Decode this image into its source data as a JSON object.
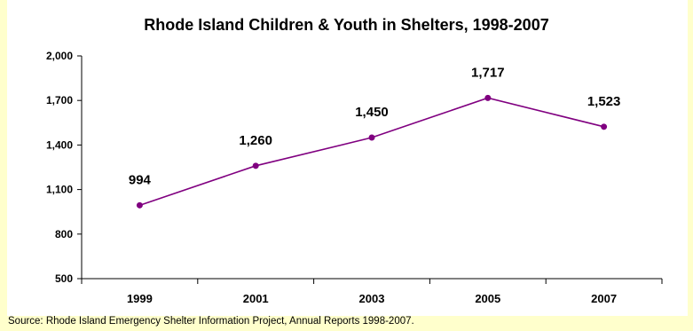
{
  "chart_data": {
    "type": "line",
    "title": "Rhode Island Children & Youth in Shelters, 1998-2007",
    "categories": [
      "1999",
      "2001",
      "2003",
      "2005",
      "2007"
    ],
    "series": [
      {
        "values": [
          994,
          1260,
          1450,
          1717,
          1523
        ],
        "data_labels": [
          "994",
          "1,260",
          "1,450",
          "1,717",
          "1,523"
        ]
      }
    ],
    "y_ticks": [
      500,
      800,
      1100,
      1400,
      1700,
      2000
    ],
    "y_tick_labels": [
      "500",
      "800",
      "1,100",
      "1,400",
      "1,700",
      "2,000"
    ],
    "ylim": [
      500,
      2000
    ],
    "xlabel": "",
    "ylabel": "",
    "grid": false,
    "legend": "none",
    "line_color": "#800080"
  },
  "source": "Source:  Rhode Island Emergency Shelter Information Project, Annual Reports 1998-2007.",
  "colors": {
    "page_background": "#FFFFCC",
    "plot_background": "#FFFFFF"
  }
}
